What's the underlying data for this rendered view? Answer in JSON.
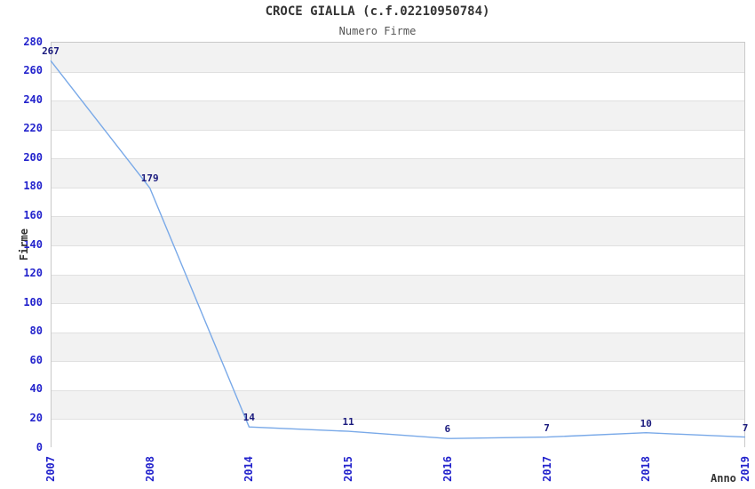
{
  "title": "CROCE GIALLA (c.f.02210950784)",
  "subtitle": "Numero Firme",
  "chart_data": {
    "type": "line",
    "title": "CROCE GIALLA (c.f.02210950784)",
    "subtitle": "Numero Firme",
    "xlabel": "Anno",
    "ylabel": "Firme",
    "categories": [
      "2007",
      "2008",
      "2014",
      "2015",
      "2016",
      "2017",
      "2018",
      "2019"
    ],
    "series": [
      {
        "name": "Numero Firme",
        "values": [
          267,
          179,
          14,
          11,
          6,
          7,
          10,
          7
        ]
      }
    ],
    "ylim": [
      0,
      280
    ],
    "ytick_step": 20,
    "grid": "alternating horizontal bands every 20 units with light gridlines",
    "legend_position": "none",
    "point_labels_shown": true,
    "colors": {
      "line": "#79a9e8",
      "axis_tick_labels": "#2222cc",
      "point_labels": "#1b1b7e",
      "band_fill": "#f2f2f2",
      "band_alt_fill": "#ffffff",
      "gridline": "#e0e0e0",
      "plot_border": "#c9c9c9",
      "title_text": "#333333",
      "background": "#ffffff"
    }
  }
}
